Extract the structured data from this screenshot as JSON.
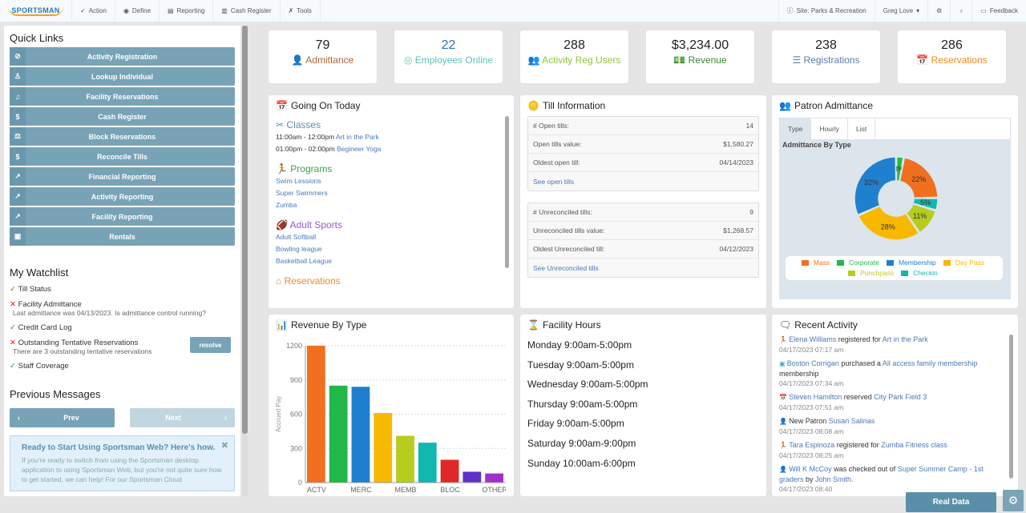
{
  "topbar": {
    "logo": "SPORTSMAN",
    "logo_sub": "WEB",
    "menu": [
      "Action",
      "Define",
      "Reporting",
      "Cash Register",
      "Tools"
    ],
    "site": "Site: Parks & Recreation",
    "user": "Greg Love",
    "feedback": "Feedback"
  },
  "quick_links": {
    "title": "Quick Links",
    "items": [
      "Activity Registration",
      "Lookup Individual",
      "Facility Reservations",
      "Cash Register",
      "Block Reservations",
      "Reconcile Tills",
      "Financial Reporting",
      "Activity Reporting",
      "Facility Reporting",
      "Rentals"
    ]
  },
  "watchlist": {
    "title": "My Watchlist",
    "items": [
      {
        "label": "Till Status",
        "ok": true,
        "sub": ""
      },
      {
        "label": "Facility Admittance",
        "ok": false,
        "sub": "Last admittance was 04/13/2023. Is admittance control running?"
      },
      {
        "label": "Credit Card Log",
        "ok": true,
        "sub": ""
      },
      {
        "label": "Outstanding Tentative Reservations",
        "ok": false,
        "sub": "There are 3 outstanding tentative reservations",
        "action": "resolve"
      },
      {
        "label": "Staff Coverage",
        "ok": true,
        "sub": ""
      }
    ]
  },
  "messages": {
    "title": "Previous Messages",
    "prev": "Prev",
    "next": "Next",
    "info_title": "Ready to Start Using Sportsman Web? Here's how.",
    "info_body": "If you're ready to switch from using the Sportsman desktop application to using Sportsman Web, but you're not quite sure how to get started, we can help! For our Sportsman Cloud"
  },
  "stats": [
    {
      "value": "79",
      "label": "Admittance",
      "color": "#b0663a"
    },
    {
      "value": "22",
      "label": "Employees Online",
      "color": "#5ec4b6",
      "value_color": "#2a6fc0"
    },
    {
      "value": "288",
      "label": "Activity Reg Users",
      "color": "#8cc63f"
    },
    {
      "value": "$3,234.00",
      "label": "Revenue",
      "color": "#3a8a3a"
    },
    {
      "value": "238",
      "label": "Registrations",
      "color": "#5a7fa8"
    },
    {
      "value": "286",
      "label": "Reservations",
      "color": "#f08a1e"
    }
  ],
  "going_on": {
    "title": "Going On Today",
    "classes": {
      "title": "Classes",
      "items": [
        {
          "time": "11:00am - 12:00pm",
          "name": "Art in the Park"
        },
        {
          "time": "01:00pm - 02:00pm",
          "name": "Begineer Yoga"
        }
      ]
    },
    "programs": {
      "title": "Programs",
      "items": [
        "Swim Lessions",
        "Super Swimmers",
        "Zumba"
      ]
    },
    "adult_sports": {
      "title": "Adult Sports",
      "items": [
        "Adult Softball",
        "Bowling league",
        "Basketball League"
      ]
    },
    "reservations": {
      "title": "Reservations"
    }
  },
  "till": {
    "title": "Till Information",
    "open": [
      [
        "# Open tills:",
        "14"
      ],
      [
        "Open tills value:",
        "$1,580.27"
      ],
      [
        "Oldest open till:",
        "04/14/2023"
      ]
    ],
    "open_link": "See open tills",
    "unrec": [
      [
        "# Unreconciled tills:",
        "9"
      ],
      [
        "Unreconciled tills value:",
        "$1,268.57"
      ],
      [
        "Oldest Unreconciled till:",
        "04/12/2023"
      ]
    ],
    "unrec_link": "See Unreconciled tills"
  },
  "patron": {
    "title": "Patron Admittance",
    "tabs": [
      "Type",
      "Hourly",
      "List"
    ],
    "chart_title": "Admittance By Type"
  },
  "hours": {
    "title": "Facility Hours",
    "days": [
      "Monday 9:00am-5:00pm",
      "Tuesday 9:00am-5:00pm",
      "Wednesday 9:00am-5:00pm",
      "Thursday 9:00am-5:00pm",
      "Friday 9:00am-5:00pm",
      "Saturday 9:00am-9:00pm",
      "Sunday 10:00am-6:00pm"
    ]
  },
  "recent": {
    "title": "Recent Activity",
    "items": [
      {
        "who": "Elena Williams",
        "verb": " registered for ",
        "what": "Art in the Park",
        "ts": "04/17/2023 07:17 am",
        "icon": "run"
      },
      {
        "who": "Boston Corrigan",
        "verb": " purchased a ",
        "what": "All access family membership",
        "tail": " membership",
        "ts": "04/17/2023 07:34 am",
        "icon": "card"
      },
      {
        "who": "Steven Hamilton",
        "verb": " reserved ",
        "what": "City Park Field 3",
        "ts": "04/17/2023 07:51 am",
        "icon": "cal"
      },
      {
        "pre": "New Patron ",
        "who": "Susan Salinas",
        "verb": "",
        "what": "",
        "ts": "04/17/2023 08:08 am",
        "icon": "user-plus"
      },
      {
        "who": "Tara Espinoza",
        "verb": " registered for ",
        "what": "Zumba Fitness class",
        "ts": "04/17/2023 08:25 am",
        "icon": "run"
      },
      {
        "who": "Will K McCoy",
        "verb": " was checked out of ",
        "what": "Super Summer Camp - 1st graders",
        "tail2": " by ",
        "who2": "John Smith.",
        "ts": "04/17/2023 08:40",
        "icon": "user-check"
      }
    ]
  },
  "footer": {
    "real_data": "Real Data"
  },
  "chart_data": [
    {
      "type": "bar",
      "title": "Revenue By Type",
      "xlabel": "",
      "ylabel": "Accrued Pay",
      "ylim": [
        0,
        1200
      ],
      "yticks": [
        0,
        300,
        600,
        900,
        1200
      ],
      "categories": [
        "ACTV",
        "",
        "MERC",
        "",
        "MEMB",
        "",
        "BLOC",
        "",
        "OTHER"
      ],
      "values": [
        1200,
        850,
        840,
        610,
        410,
        350,
        200,
        95,
        80
      ],
      "colors": [
        "#f07020",
        "#20b848",
        "#2080d0",
        "#f8b800",
        "#b8cc20",
        "#10b8b0",
        "#e02828",
        "#6030c8",
        "#a030c8"
      ],
      "grid": true
    },
    {
      "type": "pie",
      "title": "Admittance By Type",
      "labels": [
        "Corporate",
        "Mass",
        "Checkin",
        "Punchpass",
        "Day Pass",
        "Membership"
      ],
      "values": [
        3,
        22,
        5,
        11,
        28,
        32
      ],
      "colors": [
        "#20b848",
        "#f07020",
        "#10b8b0",
        "#b8cc20",
        "#f8b800",
        "#2080d0"
      ],
      "legend_order": [
        "Mass",
        "Corporate",
        "Membership",
        "Day Pass",
        "Punchpass",
        "Checkin"
      ],
      "legend": "bottom"
    }
  ]
}
